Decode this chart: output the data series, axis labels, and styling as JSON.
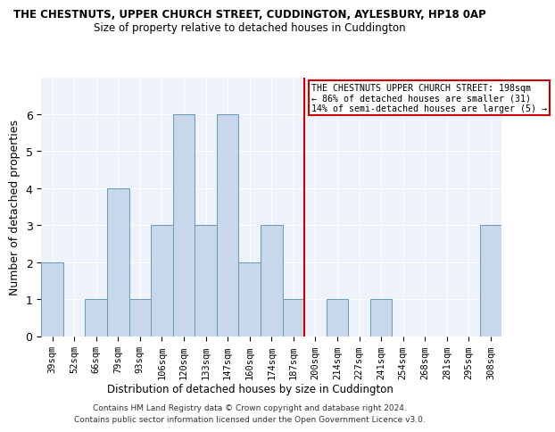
{
  "title": "THE CHESTNUTS, UPPER CHURCH STREET, CUDDINGTON, AYLESBURY, HP18 0AP",
  "subtitle": "Size of property relative to detached houses in Cuddington",
  "xlabel": "Distribution of detached houses by size in Cuddington",
  "ylabel": "Number of detached properties",
  "categories": [
    "39sqm",
    "52sqm",
    "66sqm",
    "79sqm",
    "93sqm",
    "106sqm",
    "120sqm",
    "133sqm",
    "147sqm",
    "160sqm",
    "174sqm",
    "187sqm",
    "200sqm",
    "214sqm",
    "227sqm",
    "241sqm",
    "254sqm",
    "268sqm",
    "281sqm",
    "295sqm",
    "308sqm"
  ],
  "values": [
    2,
    0,
    1,
    4,
    1,
    3,
    6,
    3,
    6,
    2,
    3,
    1,
    0,
    1,
    0,
    1,
    0,
    0,
    0,
    0,
    3
  ],
  "bar_color": "#c8d8ea",
  "bar_edgecolor": "#6699bb",
  "vline_x": 11.5,
  "vline_label": "THE CHESTNUTS UPPER CHURCH STREET: 198sqm\n← 86% of detached houses are smaller (31)\n14% of semi-detached houses are larger (5) →",
  "vline_color": "#cc0000",
  "annotation_box_color": "#cc0000",
  "ylim": [
    0,
    7
  ],
  "yticks": [
    0,
    1,
    2,
    3,
    4,
    5,
    6,
    7
  ],
  "background_color": "#eef2fb",
  "footer_line1": "Contains HM Land Registry data © Crown copyright and database right 2024.",
  "footer_line2": "Contains public sector information licensed under the Open Government Licence v3.0."
}
